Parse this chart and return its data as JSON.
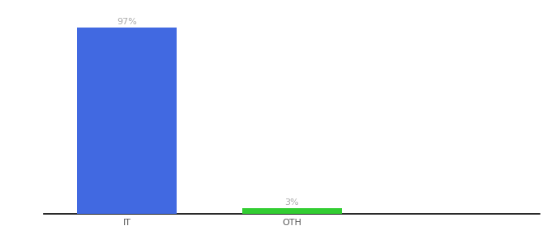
{
  "categories": [
    "IT",
    "OTH"
  ],
  "values": [
    97,
    3
  ],
  "bar_colors": [
    "#4169e1",
    "#32cd32"
  ],
  "ylim": [
    0,
    105
  ],
  "xlim": [
    -0.5,
    2.5
  ],
  "label_fontsize": 8,
  "tick_fontsize": 8,
  "background_color": "#ffffff",
  "bar_width": 0.6,
  "x_positions": [
    0,
    1
  ]
}
